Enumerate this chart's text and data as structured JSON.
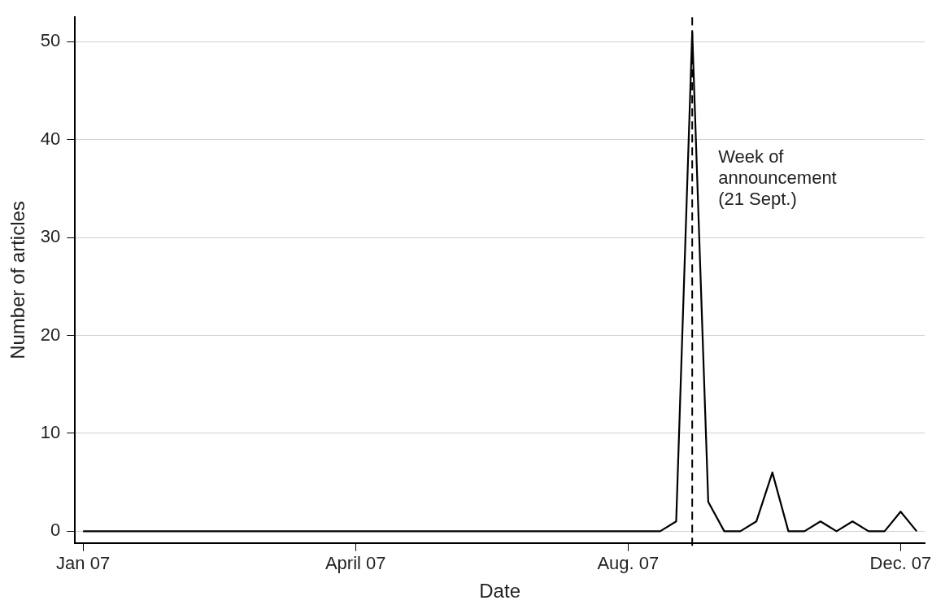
{
  "chart_data": {
    "type": "line",
    "xlabel": "Date",
    "ylabel": "Number of articles",
    "categories": [
      "Jan 07",
      null,
      null,
      null,
      null,
      null,
      null,
      null,
      null,
      null,
      null,
      null,
      null,
      null,
      null,
      null,
      null,
      "April 07",
      null,
      null,
      null,
      null,
      null,
      null,
      null,
      null,
      null,
      null,
      null,
      null,
      null,
      null,
      null,
      null,
      "Aug. 07",
      null,
      null,
      null,
      null,
      null,
      null,
      null,
      null,
      null,
      null,
      null,
      null,
      null,
      null,
      null,
      null,
      "Dec. 07",
      null
    ],
    "series": [
      {
        "color": "#000000",
        "values": [
          0,
          0,
          0,
          0,
          0,
          0,
          0,
          0,
          0,
          0,
          0,
          0,
          0,
          0,
          0,
          0,
          0,
          0,
          0,
          0,
          0,
          0,
          0,
          0,
          0,
          0,
          0,
          0,
          0,
          0,
          0,
          0,
          0,
          0,
          0,
          0,
          0,
          1,
          51,
          3,
          0,
          0,
          1,
          6,
          0,
          0,
          1,
          0,
          1,
          0,
          0,
          2,
          0
        ]
      }
    ],
    "ylim": [
      -1.2,
      52.5
    ],
    "yticks": [
      0,
      10,
      20,
      30,
      40,
      50
    ],
    "grid": "y",
    "legend": false,
    "marker": "none",
    "line_style": "solid",
    "annotations": [
      "Week of announcement (21 Sept.)"
    ]
  }
}
